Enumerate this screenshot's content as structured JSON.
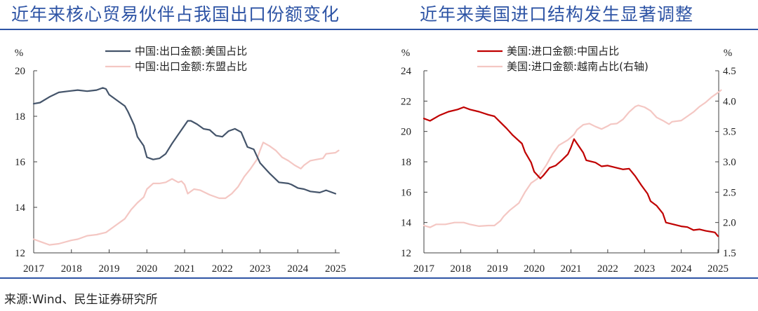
{
  "page": {
    "source": "来源:Wind、民生证券研究所",
    "accent_color": "#2e54a5"
  },
  "chart_data": [
    {
      "type": "line",
      "title": "近年来核心贸易伙伴占我国出口份额变化",
      "ylabel": "%",
      "xlim": [
        2017,
        2025
      ],
      "ylim": [
        12,
        20
      ],
      "x_ticks": [
        "2017",
        "2018",
        "2019",
        "2020",
        "2021",
        "2022",
        "2023",
        "2024",
        "2025"
      ],
      "y_ticks": [
        "12",
        "14",
        "16",
        "18",
        "20"
      ],
      "grid": false,
      "legend": "top",
      "series": [
        {
          "name": "中国:出口金额:美国占比",
          "color": "#44546a",
          "axis": "left",
          "x": [
            "2017-01",
            "2017-03",
            "2017-06",
            "2017-09",
            "2017-12",
            "2018-03",
            "2018-06",
            "2018-09",
            "2018-11",
            "2018-12",
            "2019-01",
            "2019-04",
            "2019-06",
            "2019-07",
            "2019-09",
            "2019-10",
            "2019-12",
            "2020-01",
            "2020-03",
            "2020-05",
            "2020-07",
            "2020-09",
            "2020-11",
            "2020-12",
            "2021-02",
            "2021-03",
            "2021-05",
            "2021-07",
            "2021-09",
            "2021-11",
            "2022-01",
            "2022-03",
            "2022-05",
            "2022-07",
            "2022-09",
            "2022-11",
            "2023-01",
            "2023-04",
            "2023-07",
            "2023-10",
            "2023-11",
            "2024-01",
            "2024-03",
            "2024-05",
            "2024-08",
            "2024-10",
            "2025-01"
          ],
          "values": [
            18.55,
            18.6,
            18.85,
            19.05,
            19.1,
            19.15,
            19.1,
            19.15,
            19.25,
            19.2,
            18.95,
            18.65,
            18.45,
            18.2,
            17.6,
            17.1,
            16.7,
            16.2,
            16.1,
            16.15,
            16.35,
            16.8,
            17.2,
            17.4,
            17.8,
            17.8,
            17.65,
            17.45,
            17.4,
            17.15,
            17.1,
            17.35,
            17.45,
            17.3,
            16.65,
            16.55,
            15.95,
            15.5,
            15.1,
            15.05,
            15.0,
            14.85,
            14.8,
            14.7,
            14.65,
            14.75,
            14.6
          ]
        },
        {
          "name": "中国:出口金额:东盟占比",
          "color": "#f4c7c3",
          "axis": "left",
          "x": [
            "2017-01",
            "2017-03",
            "2017-06",
            "2017-09",
            "2018-01",
            "2018-03",
            "2018-06",
            "2018-09",
            "2018-12",
            "2019-03",
            "2019-06",
            "2019-08",
            "2019-10",
            "2019-12",
            "2020-01",
            "2020-03",
            "2020-05",
            "2020-07",
            "2020-09",
            "2020-11",
            "2020-12",
            "2021-01",
            "2021-02",
            "2021-04",
            "2021-06",
            "2021-09",
            "2021-12",
            "2022-02",
            "2022-04",
            "2022-06",
            "2022-08",
            "2022-10",
            "2022-12",
            "2023-01",
            "2023-02",
            "2023-04",
            "2023-06",
            "2023-08",
            "2023-10",
            "2023-12",
            "2024-02",
            "2024-03",
            "2024-05",
            "2024-07",
            "2024-09",
            "2024-10",
            "2025-01",
            "2025-02"
          ],
          "values": [
            12.6,
            12.5,
            12.35,
            12.4,
            12.55,
            12.6,
            12.75,
            12.8,
            12.9,
            13.2,
            13.5,
            13.9,
            14.2,
            14.45,
            14.8,
            15.05,
            15.05,
            15.1,
            15.25,
            15.1,
            15.15,
            15.0,
            14.6,
            14.8,
            14.75,
            14.55,
            14.4,
            14.4,
            14.6,
            14.9,
            15.35,
            15.7,
            16.1,
            16.5,
            16.85,
            16.7,
            16.5,
            16.2,
            16.05,
            15.85,
            15.7,
            15.85,
            16.05,
            16.1,
            16.15,
            16.35,
            16.4,
            16.5
          ]
        }
      ]
    },
    {
      "type": "line",
      "title": "近年来美国进口结构发生显著调整",
      "ylabel": "%",
      "ylabel_right": "%",
      "xlim": [
        2017,
        2025
      ],
      "ylim": [
        12,
        24
      ],
      "ylim_right": [
        1.5,
        4.5
      ],
      "x_ticks": [
        "2017",
        "2018",
        "2019",
        "2020",
        "2021",
        "2022",
        "2023",
        "2024",
        "2025"
      ],
      "y_ticks": [
        "12",
        "14",
        "16",
        "18",
        "20",
        "22",
        "24"
      ],
      "y_ticks_right": [
        "1.5",
        "2.0",
        "2.5",
        "3.0",
        "3.5",
        "4.0",
        "4.5"
      ],
      "grid": false,
      "legend": "top",
      "series": [
        {
          "name": "美国:进口金额:中国占比",
          "color": "#c00000",
          "axis": "left",
          "x": [
            "2017-01",
            "2017-03",
            "2017-06",
            "2017-09",
            "2017-12",
            "2018-02",
            "2018-04",
            "2018-07",
            "2018-10",
            "2018-12",
            "2019-02",
            "2019-04",
            "2019-06",
            "2019-09",
            "2019-10",
            "2019-12",
            "2020-01",
            "2020-03",
            "2020-04",
            "2020-06",
            "2020-08",
            "2020-10",
            "2020-12",
            "2021-01",
            "2021-02",
            "2021-03",
            "2021-05",
            "2021-06",
            "2021-09",
            "2021-11",
            "2022-01",
            "2022-04",
            "2022-06",
            "2022-08",
            "2022-10",
            "2022-12",
            "2023-02",
            "2023-03",
            "2023-05",
            "2023-07",
            "2023-08",
            "2023-10",
            "2024-01",
            "2024-03",
            "2024-05",
            "2024-07",
            "2024-09",
            "2024-12",
            "2025-01"
          ],
          "values": [
            20.85,
            20.7,
            21.05,
            21.3,
            21.45,
            21.6,
            21.45,
            21.3,
            21.1,
            21.0,
            20.6,
            20.2,
            19.75,
            19.2,
            18.65,
            17.95,
            17.35,
            16.9,
            17.1,
            17.6,
            17.75,
            18.1,
            18.5,
            18.95,
            19.5,
            19.2,
            18.6,
            18.1,
            17.95,
            17.7,
            17.75,
            17.6,
            17.5,
            17.55,
            17.05,
            16.45,
            15.9,
            15.4,
            15.1,
            14.6,
            14.0,
            13.9,
            13.75,
            13.7,
            13.5,
            13.55,
            13.45,
            13.35,
            13.1
          ]
        },
        {
          "name": "美国:进口金额:越南占比(右轴)",
          "color": "#f4c7c3",
          "axis": "right",
          "x": [
            "2017-01",
            "2017-03",
            "2017-05",
            "2017-08",
            "2017-11",
            "2018-02",
            "2018-04",
            "2018-07",
            "2018-10",
            "2018-12",
            "2019-02",
            "2019-03",
            "2019-05",
            "2019-08",
            "2019-10",
            "2019-12",
            "2020-02",
            "2020-03",
            "2020-05",
            "2020-07",
            "2020-09",
            "2020-12",
            "2021-02",
            "2021-03",
            "2021-05",
            "2021-07",
            "2021-09",
            "2021-11",
            "2022-01",
            "2022-02",
            "2022-04",
            "2022-06",
            "2022-08",
            "2022-10",
            "2022-11",
            "2023-01",
            "2023-03",
            "2023-05",
            "2023-07",
            "2023-09",
            "2023-10",
            "2024-01",
            "2024-03",
            "2024-05",
            "2024-07",
            "2024-09",
            "2024-11",
            "2025-01",
            "2025-02"
          ],
          "values": [
            1.95,
            1.92,
            1.97,
            1.97,
            2.0,
            2.0,
            1.97,
            1.94,
            1.95,
            1.95,
            2.03,
            2.1,
            2.2,
            2.32,
            2.5,
            2.65,
            2.72,
            2.8,
            2.95,
            3.13,
            3.27,
            3.36,
            3.45,
            3.53,
            3.61,
            3.63,
            3.58,
            3.54,
            3.59,
            3.62,
            3.63,
            3.7,
            3.82,
            3.91,
            3.93,
            3.9,
            3.84,
            3.73,
            3.68,
            3.62,
            3.66,
            3.68,
            3.75,
            3.82,
            3.91,
            3.98,
            4.07,
            4.14,
            4.18
          ]
        }
      ]
    }
  ]
}
